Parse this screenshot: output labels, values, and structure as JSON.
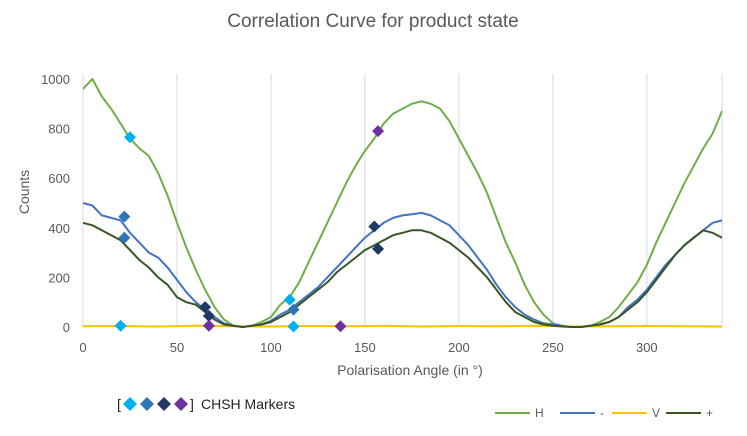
{
  "chart_data": {
    "type": "line",
    "title": "Correlation Curve for product state",
    "xlabel": "Polarisation Angle (in °)",
    "ylabel": "Counts",
    "xlim": [
      0,
      340
    ],
    "ylim": [
      0,
      1000
    ],
    "xticks": [
      "0",
      "50",
      "100",
      "150",
      "200",
      "250",
      "300"
    ],
    "yticks": [
      "0",
      "200",
      "400",
      "600",
      "800",
      "1000"
    ],
    "grid": "vertical",
    "legend_position": "bottom-right",
    "series": [
      {
        "name": "H",
        "color": "#70AD47",
        "x": [
          0,
          5,
          10,
          15,
          20,
          25,
          30,
          35,
          40,
          45,
          50,
          55,
          60,
          65,
          70,
          75,
          80,
          85,
          90,
          95,
          100,
          105,
          110,
          115,
          120,
          125,
          130,
          135,
          140,
          145,
          150,
          155,
          160,
          165,
          170,
          175,
          180,
          185,
          190,
          195,
          200,
          205,
          210,
          215,
          220,
          225,
          230,
          235,
          240,
          245,
          250,
          255,
          260,
          265,
          270,
          275,
          280,
          285,
          290,
          295,
          300,
          305,
          310,
          315,
          320,
          325,
          330,
          335,
          340
        ],
        "y": [
          960,
          1000,
          930,
          880,
          820,
          760,
          720,
          690,
          620,
          530,
          420,
          320,
          230,
          150,
          80,
          30,
          5,
          0,
          5,
          20,
          40,
          90,
          120,
          180,
          260,
          340,
          420,
          500,
          580,
          650,
          710,
          760,
          820,
          860,
          880,
          900,
          910,
          900,
          880,
          830,
          760,
          690,
          620,
          540,
          440,
          340,
          260,
          170,
          100,
          50,
          15,
          5,
          0,
          0,
          5,
          20,
          40,
          80,
          130,
          180,
          250,
          340,
          420,
          500,
          580,
          650,
          720,
          780,
          870
        ]
      },
      {
        "name": "-",
        "color": "#4472C4",
        "x": [
          0,
          5,
          10,
          15,
          20,
          25,
          30,
          35,
          40,
          45,
          50,
          55,
          60,
          65,
          70,
          75,
          80,
          85,
          90,
          95,
          100,
          105,
          110,
          115,
          120,
          125,
          130,
          135,
          140,
          145,
          150,
          155,
          160,
          165,
          170,
          175,
          180,
          185,
          190,
          195,
          200,
          205,
          210,
          215,
          220,
          225,
          230,
          235,
          240,
          245,
          250,
          255,
          260,
          265,
          270,
          275,
          280,
          285,
          290,
          295,
          300,
          305,
          310,
          315,
          320,
          325,
          330,
          335,
          340
        ],
        "y": [
          500,
          490,
          450,
          440,
          430,
          380,
          340,
          300,
          280,
          240,
          190,
          140,
          100,
          70,
          40,
          15,
          5,
          0,
          5,
          10,
          25,
          50,
          70,
          100,
          130,
          160,
          200,
          240,
          280,
          320,
          360,
          390,
          420,
          440,
          450,
          455,
          460,
          450,
          430,
          410,
          370,
          330,
          280,
          230,
          170,
          120,
          80,
          50,
          30,
          15,
          10,
          5,
          0,
          0,
          5,
          10,
          20,
          40,
          80,
          110,
          150,
          200,
          250,
          290,
          330,
          360,
          390,
          420,
          430
        ]
      },
      {
        "name": "V",
        "color": "#FFC000",
        "x": [
          0,
          20,
          40,
          60,
          80,
          100,
          120,
          140,
          160,
          180,
          200,
          220,
          240,
          260,
          280,
          300,
          320,
          340
        ],
        "y": [
          3,
          4,
          2,
          5,
          3,
          2,
          4,
          3,
          5,
          2,
          4,
          3,
          5,
          2,
          3,
          4,
          3,
          2
        ]
      },
      {
        "name": "+",
        "color": "#375623",
        "x": [
          0,
          5,
          10,
          15,
          20,
          25,
          30,
          35,
          40,
          45,
          50,
          55,
          60,
          65,
          70,
          75,
          80,
          85,
          90,
          95,
          100,
          105,
          110,
          115,
          120,
          125,
          130,
          135,
          140,
          145,
          150,
          155,
          160,
          165,
          170,
          175,
          180,
          185,
          190,
          195,
          200,
          205,
          210,
          215,
          220,
          225,
          230,
          235,
          240,
          245,
          250,
          255,
          260,
          265,
          270,
          275,
          280,
          285,
          290,
          295,
          300,
          305,
          310,
          315,
          320,
          325,
          330,
          335,
          340
        ],
        "y": [
          420,
          410,
          390,
          370,
          350,
          310,
          270,
          240,
          200,
          170,
          120,
          100,
          90,
          60,
          30,
          10,
          5,
          0,
          5,
          10,
          20,
          40,
          60,
          90,
          120,
          150,
          180,
          220,
          250,
          280,
          310,
          330,
          350,
          370,
          380,
          390,
          390,
          380,
          360,
          340,
          310,
          280,
          240,
          200,
          150,
          100,
          60,
          40,
          20,
          10,
          5,
          2,
          0,
          0,
          5,
          10,
          20,
          40,
          70,
          100,
          140,
          190,
          240,
          290,
          330,
          360,
          390,
          380,
          360
        ]
      }
    ],
    "markers": [
      {
        "x": 25,
        "y": 765,
        "color": "#00B0F0"
      },
      {
        "x": 20,
        "y": 5,
        "color": "#00B0F0"
      },
      {
        "x": 110,
        "y": 110,
        "color": "#00B0F0"
      },
      {
        "x": 112,
        "y": 2,
        "color": "#00B0F0"
      },
      {
        "x": 22,
        "y": 445,
        "color": "#2E75B6"
      },
      {
        "x": 22,
        "y": 360,
        "color": "#2E75B6"
      },
      {
        "x": 112,
        "y": 70,
        "color": "#2E75B6"
      },
      {
        "x": 157,
        "y": 315,
        "color": "#1F3864"
      },
      {
        "x": 155,
        "y": 405,
        "color": "#1F3864"
      },
      {
        "x": 65,
        "y": 80,
        "color": "#1F3864"
      },
      {
        "x": 67,
        "y": 45,
        "color": "#1F3864"
      },
      {
        "x": 157,
        "y": 790,
        "color": "#7030A0"
      },
      {
        "x": 67,
        "y": 5,
        "color": "#7030A0"
      },
      {
        "x": 137,
        "y": 3,
        "color": "#7030A0"
      }
    ]
  },
  "marker_caption": {
    "open_bracket": "[",
    "close_bracket": "]",
    "label": "CHSH Markers",
    "colors": [
      "#00B0F0",
      "#2E75B6",
      "#1F3864",
      "#7030A0"
    ]
  }
}
